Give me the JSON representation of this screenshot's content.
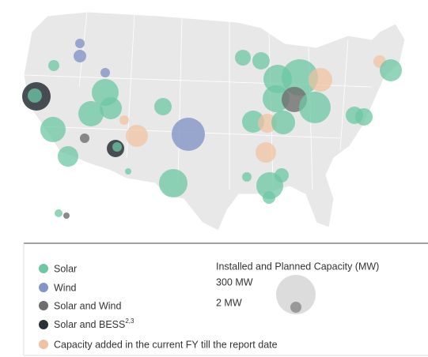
{
  "legend": {
    "items": [
      {
        "label": "Solar"
      },
      {
        "label": "Wind"
      },
      {
        "label": "Solar and Wind"
      },
      {
        "label": "Solar and BESS",
        "sup": "2,3"
      },
      {
        "label": "Capacity added in the current FY till the report date"
      }
    ],
    "size_title": "Installed and Planned Capacity (MW)",
    "size_large": "300 MW",
    "size_small": "2 MW"
  }
}
